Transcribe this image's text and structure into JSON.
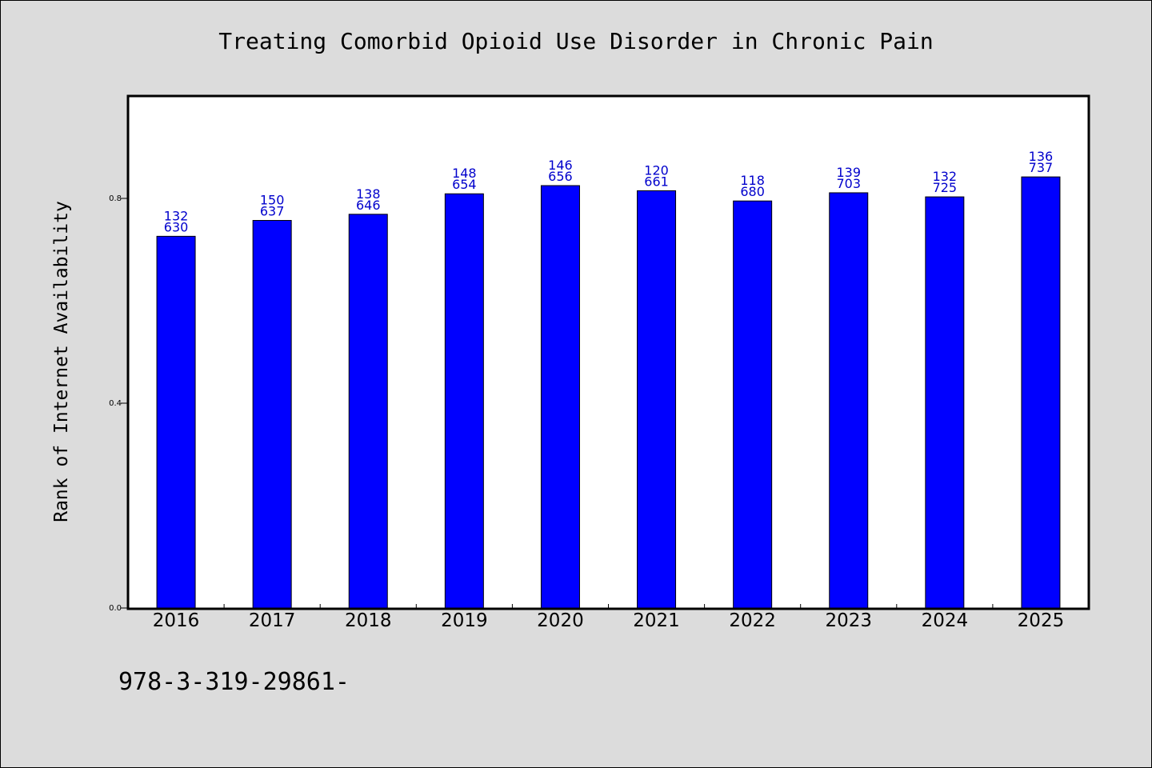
{
  "chart_data": {
    "type": "bar",
    "title": "Treating Comorbid Opioid Use Disorder in Chronic Pain",
    "xlabel": "",
    "ylabel": "Rank of Internet Availability",
    "categories": [
      "2016",
      "2017",
      "2018",
      "2019",
      "2020",
      "2021",
      "2022",
      "2023",
      "2024",
      "2025"
    ],
    "values": [
      0.726,
      0.757,
      0.769,
      0.809,
      0.825,
      0.815,
      0.795,
      0.811,
      0.803,
      0.842
    ],
    "data_labels": [
      [
        "132",
        "630"
      ],
      [
        "150",
        "637"
      ],
      [
        "138",
        "646"
      ],
      [
        "148",
        "654"
      ],
      [
        "146",
        "656"
      ],
      [
        "120",
        "661"
      ],
      [
        "118",
        "680"
      ],
      [
        "139",
        "703"
      ],
      [
        "132",
        "725"
      ],
      [
        "136",
        "737"
      ]
    ],
    "ylim": [
      0,
      1.0
    ],
    "yticks": [
      0.0,
      0.4,
      0.8
    ],
    "ytick_labels": [
      "0.0",
      "0.4",
      "0.8"
    ],
    "grid": false,
    "bar_color": "#0000ff",
    "label_color": "#0000cc",
    "background_color": "#dcdcdc"
  },
  "footer": {
    "text": "978-3-319-29861-"
  }
}
